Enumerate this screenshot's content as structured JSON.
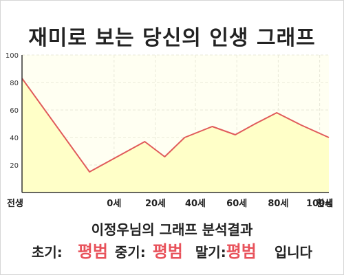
{
  "title": "재미로 보는 당신의 인생 그래프",
  "summary": "이정우님의 그래프 분석결과",
  "results": {
    "early_label": "초기:",
    "early_value": "평범",
    "mid_label": "중기:",
    "mid_value": "평범",
    "late_label": "말기:",
    "late_value": "평범",
    "suffix": "입니다"
  },
  "colors": {
    "line": "#e05a5a",
    "fill": "#ffffc8",
    "plot_bg": "#fffff2",
    "grid": "#e8e8d8"
  },
  "chart_data": {
    "type": "area",
    "ylim": [
      0,
      100
    ],
    "xlim": [
      -1,
      1
    ],
    "y_ticks": [
      20,
      40,
      60,
      80,
      100
    ],
    "x_ticks": [
      {
        "label": "전생",
        "x": -1
      },
      {
        "label": "0세",
        "x": -0.4
      },
      {
        "label": "20세",
        "x": -0.13
      },
      {
        "label": "40세",
        "x": 0.13
      },
      {
        "label": "60세",
        "x": 0.4
      },
      {
        "label": "80세",
        "x": 0.67
      },
      {
        "label": "100세",
        "x": 0.94
      },
      {
        "label": "환생",
        "x": 1
      }
    ],
    "series": [
      {
        "x": [
          -1,
          -0.56,
          -0.2,
          -0.07,
          0.06,
          0.24,
          0.39,
          0.52,
          0.66,
          0.82,
          1
        ],
        "y": [
          83,
          15,
          37,
          26,
          40,
          48,
          42,
          50,
          58,
          49,
          40
        ]
      }
    ],
    "grid": true,
    "legend": "none"
  }
}
